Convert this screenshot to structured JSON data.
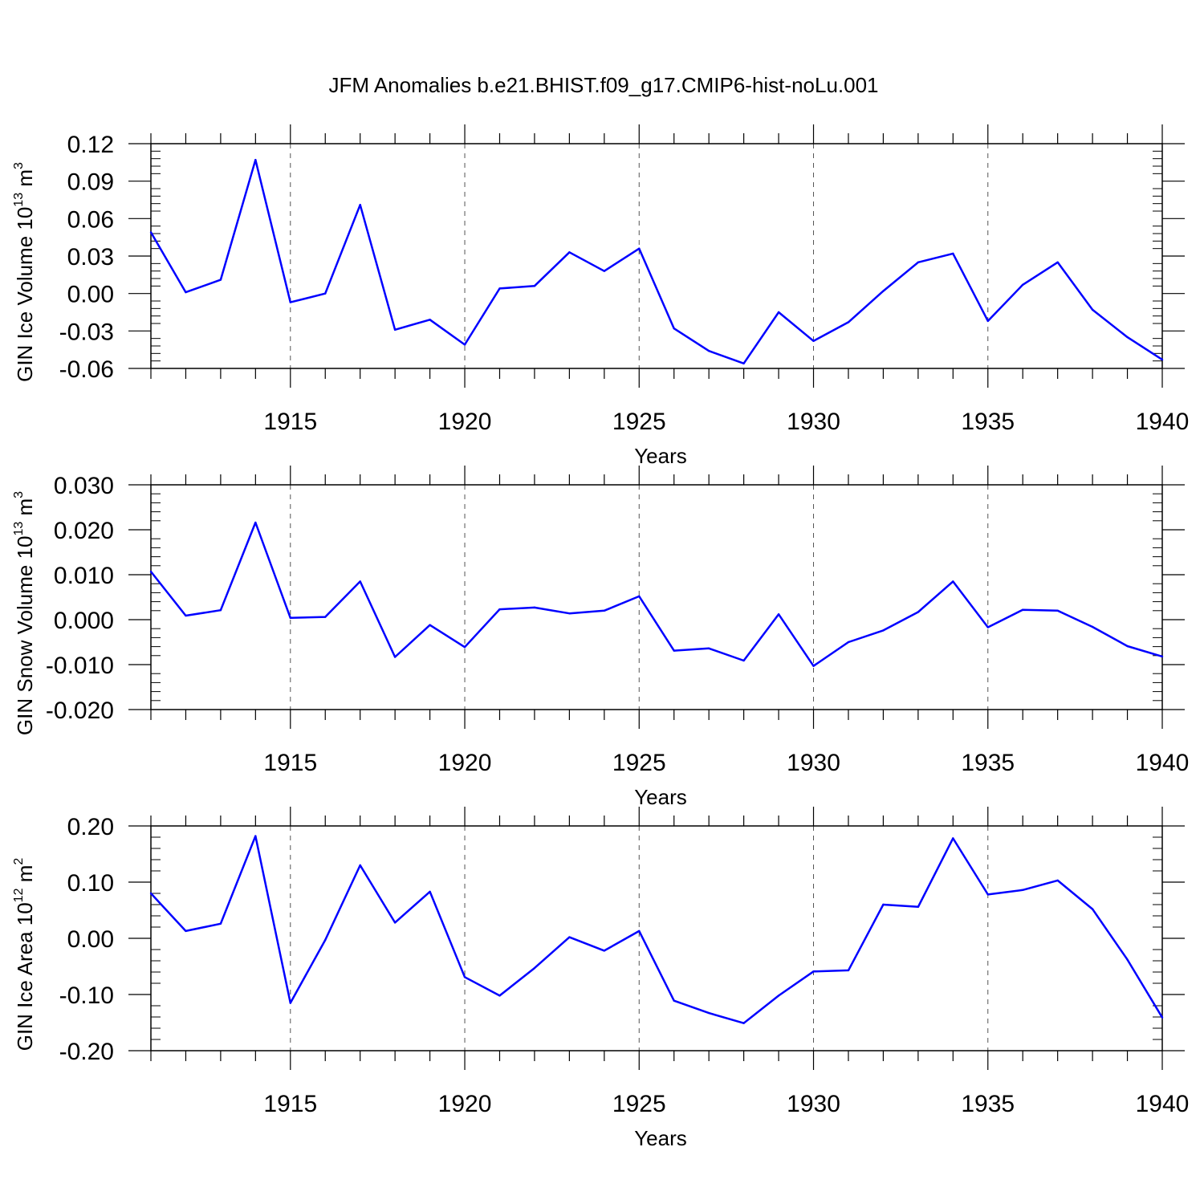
{
  "figure_title": "JFM Anomalies b.e21.BHIST.f09_g17.CMIP6-hist-noLu.001",
  "chart_data": [
    {
      "type": "line",
      "ylabel": {
        "prefix": "GIN Ice Volume 10",
        "exp": "13",
        "unit": " m",
        "unit_exp": "3"
      },
      "xlabel": "Years",
      "xlim": [
        1911,
        1940
      ],
      "ylim": [
        -0.06,
        0.12
      ],
      "y_ticks": [
        "0.12",
        "0.09",
        "0.06",
        "0.03",
        "0.00",
        "-0.03",
        "-0.06"
      ],
      "y_tick_values": [
        0.12,
        0.09,
        0.06,
        0.03,
        0.0,
        -0.03,
        -0.06
      ],
      "x_ticks": [
        "1915",
        "1920",
        "1925",
        "1930",
        "1935",
        "1940"
      ],
      "x_tick_values": [
        1915,
        1920,
        1925,
        1930,
        1935,
        1940
      ],
      "line_color": "#0000ff",
      "x": [
        1911,
        1912,
        1913,
        1914,
        1915,
        1916,
        1917,
        1918,
        1919,
        1920,
        1921,
        1922,
        1923,
        1924,
        1925,
        1926,
        1927,
        1928,
        1929,
        1930,
        1931,
        1932,
        1933,
        1934,
        1935,
        1936,
        1937,
        1938,
        1939,
        1940
      ],
      "values": [
        0.049,
        0.001,
        0.011,
        0.107,
        -0.007,
        0.0,
        0.071,
        -0.029,
        -0.021,
        -0.041,
        0.004,
        0.006,
        0.033,
        0.018,
        0.036,
        -0.028,
        -0.046,
        -0.056,
        -0.015,
        -0.038,
        -0.023,
        0.002,
        0.025,
        0.032,
        -0.022,
        0.007,
        0.025,
        -0.013,
        -0.035,
        -0.053
      ]
    },
    {
      "type": "line",
      "ylabel": {
        "prefix": "GIN Snow Volume 10",
        "exp": "13",
        "unit": " m",
        "unit_exp": "3"
      },
      "xlabel": "Years",
      "xlim": [
        1911,
        1940
      ],
      "ylim": [
        -0.02,
        0.03
      ],
      "y_ticks": [
        "0.030",
        "0.020",
        "0.010",
        "0.000",
        "-0.010",
        "-0.020"
      ],
      "y_tick_values": [
        0.03,
        0.02,
        0.01,
        0.0,
        -0.01,
        -0.02
      ],
      "x_ticks": [
        "1915",
        "1920",
        "1925",
        "1930",
        "1935",
        "1940"
      ],
      "x_tick_values": [
        1915,
        1920,
        1925,
        1930,
        1935,
        1940
      ],
      "line_color": "#0000ff",
      "x": [
        1911,
        1912,
        1913,
        1914,
        1915,
        1916,
        1917,
        1918,
        1919,
        1920,
        1921,
        1922,
        1923,
        1924,
        1925,
        1926,
        1927,
        1928,
        1929,
        1930,
        1931,
        1932,
        1933,
        1934,
        1935,
        1936,
        1937,
        1938,
        1939,
        1940
      ],
      "values": [
        0.0107,
        0.0009,
        0.0021,
        0.0216,
        0.0004,
        0.0006,
        0.0085,
        -0.0083,
        -0.0012,
        -0.0061,
        0.0023,
        0.0027,
        0.0014,
        0.002,
        0.0052,
        -0.0069,
        -0.0064,
        -0.0091,
        0.0012,
        -0.0103,
        -0.005,
        -0.0024,
        0.0017,
        0.0085,
        -0.0017,
        0.0022,
        0.002,
        -0.0016,
        -0.0059,
        -0.0082
      ]
    },
    {
      "type": "line",
      "ylabel": {
        "prefix": "GIN Ice Area 10",
        "exp": "12",
        "unit": " m",
        "unit_exp": "2"
      },
      "xlabel": "Years",
      "xlim": [
        1911,
        1940
      ],
      "ylim": [
        -0.2,
        0.2
      ],
      "y_ticks": [
        "0.20",
        "0.10",
        "0.00",
        "-0.10",
        "-0.20"
      ],
      "y_tick_values": [
        0.2,
        0.1,
        0.0,
        -0.1,
        -0.2
      ],
      "x_ticks": [
        "1915",
        "1920",
        "1925",
        "1930",
        "1935",
        "1940"
      ],
      "x_tick_values": [
        1915,
        1920,
        1925,
        1930,
        1935,
        1940
      ],
      "line_color": "#0000ff",
      "x": [
        1911,
        1912,
        1913,
        1914,
        1915,
        1916,
        1917,
        1918,
        1919,
        1920,
        1921,
        1922,
        1923,
        1924,
        1925,
        1926,
        1927,
        1928,
        1929,
        1930,
        1931,
        1932,
        1933,
        1934,
        1935,
        1936,
        1937,
        1938,
        1939,
        1940
      ],
      "values": [
        0.08,
        0.013,
        0.026,
        0.182,
        -0.115,
        -0.003,
        0.13,
        0.028,
        0.083,
        -0.069,
        -0.102,
        -0.053,
        0.002,
        -0.022,
        0.013,
        -0.111,
        -0.133,
        -0.151,
        -0.102,
        -0.059,
        -0.057,
        0.06,
        0.056,
        0.178,
        0.078,
        0.086,
        0.103,
        0.052,
        -0.038,
        -0.141
      ]
    }
  ]
}
